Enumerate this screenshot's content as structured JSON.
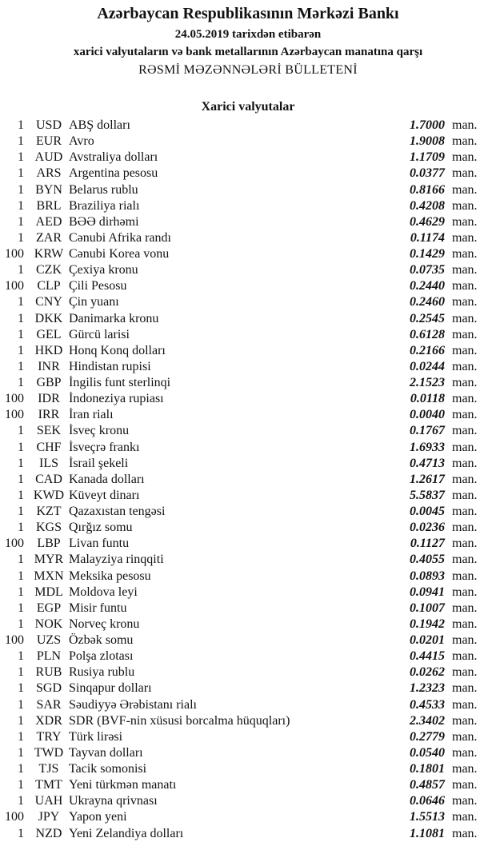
{
  "header": {
    "title": "Azərbaycan Respublikasının Mərkəzi Bankı",
    "date_line": "24.05.2019  tarixdən etibarən",
    "subtitle": "xarici valyutaların və bank metallarının Azərbaycan manatına qarşı",
    "bulletin": "RƏSMİ MƏZƏNNƏLƏRİ BÜLLETENİ",
    "section": "Xarici valyutalar"
  },
  "unit": "man.",
  "rates": [
    {
      "amount": "1",
      "code": "USD",
      "name": "ABŞ dolları",
      "rate": "1.7000"
    },
    {
      "amount": "1",
      "code": "EUR",
      "name": "Avro",
      "rate": "1.9008"
    },
    {
      "amount": "1",
      "code": "AUD",
      "name": "Avstraliya dolları",
      "rate": "1.1709"
    },
    {
      "amount": "1",
      "code": "ARS",
      "name": "Argentina pesosu",
      "rate": "0.0377"
    },
    {
      "amount": "1",
      "code": "BYN",
      "name": "Belarus rublu",
      "rate": "0.8166"
    },
    {
      "amount": "1",
      "code": "BRL",
      "name": "Braziliya rialı",
      "rate": "0.4208"
    },
    {
      "amount": "1",
      "code": "AED",
      "name": "BƏƏ dirhəmi",
      "rate": "0.4629"
    },
    {
      "amount": "1",
      "code": "ZAR",
      "name": "Cənubi Afrika randı",
      "rate": "0.1174"
    },
    {
      "amount": "100",
      "code": "KRW",
      "name": "Cənubi Korea vonu",
      "rate": "0.1429"
    },
    {
      "amount": "1",
      "code": "CZK",
      "name": "Çexiya kronu",
      "rate": "0.0735"
    },
    {
      "amount": "100",
      "code": "CLP",
      "name": "Çili Pesosu",
      "rate": "0.2440"
    },
    {
      "amount": "1",
      "code": "CNY",
      "name": "Çin yuanı",
      "rate": "0.2460"
    },
    {
      "amount": "1",
      "code": "DKK",
      "name": "Danimarka kronu",
      "rate": "0.2545"
    },
    {
      "amount": "1",
      "code": "GEL",
      "name": "Gürcü larisi",
      "rate": "0.6128"
    },
    {
      "amount": "1",
      "code": "HKD",
      "name": "Honq Konq dolları",
      "rate": "0.2166"
    },
    {
      "amount": "1",
      "code": "INR",
      "name": "Hindistan rupisi",
      "rate": "0.0244"
    },
    {
      "amount": "1",
      "code": "GBP",
      "name": "İngilis funt sterlinqi",
      "rate": "2.1523"
    },
    {
      "amount": "100",
      "code": "IDR",
      "name": "İndoneziya rupiası",
      "rate": "0.0118"
    },
    {
      "amount": "100",
      "code": "IRR",
      "name": "İran rialı",
      "rate": "0.0040"
    },
    {
      "amount": "1",
      "code": "SEK",
      "name": "İsveç kronu",
      "rate": "0.1767"
    },
    {
      "amount": "1",
      "code": "CHF",
      "name": "İsveçrə frankı",
      "rate": "1.6933"
    },
    {
      "amount": "1",
      "code": "ILS",
      "name": "İsrail şekeli",
      "rate": "0.4713"
    },
    {
      "amount": "1",
      "code": "CAD",
      "name": "Kanada dolları",
      "rate": "1.2617"
    },
    {
      "amount": "1",
      "code": "KWD",
      "name": "Küveyt dinarı",
      "rate": "5.5837"
    },
    {
      "amount": "1",
      "code": "KZT",
      "name": "Qazaxıstan tengəsi",
      "rate": "0.0045"
    },
    {
      "amount": "1",
      "code": "KGS",
      "name": "Qırğız somu",
      "rate": "0.0236"
    },
    {
      "amount": "100",
      "code": "LBP",
      "name": "Livan funtu",
      "rate": "0.1127"
    },
    {
      "amount": "1",
      "code": "MYR",
      "name": "Malayziya rinqqiti",
      "rate": "0.4055"
    },
    {
      "amount": "1",
      "code": "MXN",
      "name": "Meksika pesosu",
      "rate": "0.0893"
    },
    {
      "amount": "1",
      "code": "MDL",
      "name": "Moldova leyi",
      "rate": "0.0941"
    },
    {
      "amount": "1",
      "code": "EGP",
      "name": "Misir funtu",
      "rate": "0.1007"
    },
    {
      "amount": "1",
      "code": "NOK",
      "name": "Norveç kronu",
      "rate": "0.1942"
    },
    {
      "amount": "100",
      "code": "UZS",
      "name": "Özbək somu",
      "rate": "0.0201"
    },
    {
      "amount": "1",
      "code": "PLN",
      "name": "Polşa zlotası",
      "rate": "0.4415"
    },
    {
      "amount": "1",
      "code": "RUB",
      "name": "Rusiya rublu",
      "rate": "0.0262"
    },
    {
      "amount": "1",
      "code": "SGD",
      "name": "Sinqapur dolları",
      "rate": "1.2323"
    },
    {
      "amount": "1",
      "code": "SAR",
      "name": "Səudiyyə Ərəbistanı rialı",
      "rate": "0.4533"
    },
    {
      "amount": "1",
      "code": "XDR",
      "name": "SDR (BVF-nin xüsusi borcalma hüquqları)",
      "rate": "2.3402"
    },
    {
      "amount": "1",
      "code": "TRY",
      "name": "Türk lirəsi",
      "rate": "0.2779"
    },
    {
      "amount": "1",
      "code": "TWD",
      "name": "Tayvan dolları",
      "rate": "0.0540"
    },
    {
      "amount": "1",
      "code": "TJS",
      "name": "Tacik somonisi",
      "rate": "0.1801"
    },
    {
      "amount": "1",
      "code": "TMT",
      "name": "Yeni türkmən manatı",
      "rate": "0.4857"
    },
    {
      "amount": "1",
      "code": "UAH",
      "name": "Ukrayna qrivnası",
      "rate": "0.0646"
    },
    {
      "amount": "100",
      "code": "JPY",
      "name": "Yapon yeni",
      "rate": "1.5513"
    },
    {
      "amount": "1",
      "code": "NZD",
      "name": "Yeni Zelandiya dolları",
      "rate": "1.1081"
    }
  ]
}
